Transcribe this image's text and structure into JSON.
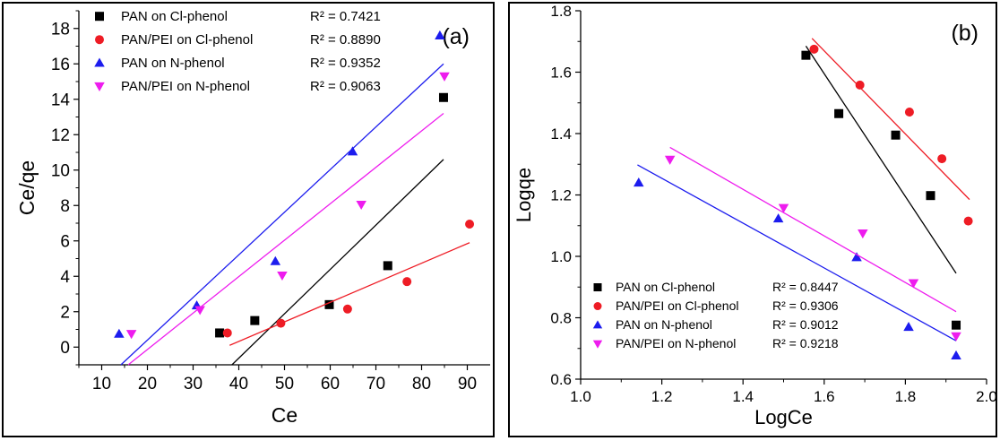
{
  "chart_data": [
    {
      "panel": "(a)",
      "type": "scatter",
      "xlabel": "Ce",
      "ylabel": "Ce/qe",
      "xlim": [
        5,
        95
      ],
      "ylim": [
        -1,
        19
      ],
      "xticks": [
        10,
        20,
        30,
        40,
        50,
        60,
        70,
        80,
        90
      ],
      "yticks": [
        0,
        2,
        4,
        6,
        8,
        10,
        12,
        14,
        16,
        18
      ],
      "grid": false,
      "legend_position": "top-left",
      "series": [
        {
          "name": "PAN on Cl-phenol",
          "r2": "R² = 0.7421",
          "marker": "square",
          "color": "#000000",
          "x": [
            35.8,
            43.5,
            59.8,
            72.6,
            84.8
          ],
          "y": [
            0.8,
            1.5,
            2.4,
            4.6,
            14.1
          ],
          "fit": [
            [
              38.5,
              -1.0
            ],
            [
              84.8,
              10.6
            ]
          ]
        },
        {
          "name": "PAN/PEI on Cl-phenol",
          "r2": "R² = 0.8890",
          "marker": "circle",
          "color": "#ee1c25",
          "x": [
            37.5,
            49.2,
            63.8,
            76.8,
            90.5
          ],
          "y": [
            0.8,
            1.35,
            2.15,
            3.7,
            6.95
          ],
          "fit": [
            [
              38.0,
              0.1
            ],
            [
              90.5,
              5.9
            ]
          ]
        },
        {
          "name": "PAN on N-phenol",
          "r2": "R² = 0.9352",
          "marker": "triangle-up",
          "color": "#1c1cee",
          "x": [
            13.8,
            30.8,
            48.0,
            64.9,
            84.0
          ],
          "y": [
            0.75,
            2.35,
            4.85,
            11.05,
            17.6
          ],
          "fit": [
            [
              14.2,
              -1.0
            ],
            [
              84.8,
              16.0
            ]
          ]
        },
        {
          "name": "PAN/PEI on N-phenol",
          "r2": "R² = 0.9063",
          "marker": "triangle-down",
          "color": "#ee1cee",
          "x": [
            16.5,
            31.5,
            49.5,
            66.8,
            85.0
          ],
          "y": [
            0.75,
            2.1,
            4.05,
            8.05,
            15.3
          ],
          "fit": [
            [
              15.8,
              -1.0
            ],
            [
              84.8,
              13.2
            ]
          ]
        }
      ]
    },
    {
      "panel": "(b)",
      "type": "scatter",
      "xlabel": "LogCe",
      "ylabel": "Logqe",
      "xlim": [
        1.0,
        2.0
      ],
      "ylim": [
        0.6,
        1.8
      ],
      "xticks": [
        1.0,
        1.2,
        1.4,
        1.6,
        1.8,
        2.0
      ],
      "yticks": [
        0.6,
        0.8,
        1.0,
        1.2,
        1.4,
        1.6,
        1.8
      ],
      "grid": false,
      "legend_position": "bottom-left",
      "series": [
        {
          "name": "PAN on Cl-phenol",
          "r2": "R² = 0.8447",
          "marker": "square",
          "color": "#000000",
          "x": [
            1.555,
            1.636,
            1.776,
            1.862,
            1.925
          ],
          "y": [
            1.655,
            1.465,
            1.395,
            1.198,
            0.776
          ],
          "fit": [
            [
              1.555,
              1.685
            ],
            [
              1.925,
              0.945
            ]
          ]
        },
        {
          "name": "PAN/PEI on Cl-phenol",
          "r2": "R² = 0.9306",
          "marker": "circle",
          "color": "#ee1c25",
          "x": [
            1.575,
            1.688,
            1.81,
            1.89,
            1.955
          ],
          "y": [
            1.675,
            1.558,
            1.47,
            1.318,
            1.115
          ],
          "fit": [
            [
              1.57,
              1.71
            ],
            [
              1.958,
              1.185
            ]
          ]
        },
        {
          "name": "PAN on N-phenol",
          "r2": "R² = 0.9012",
          "marker": "triangle-up",
          "color": "#1c1cee",
          "x": [
            1.143,
            1.487,
            1.68,
            1.808,
            1.925
          ],
          "y": [
            1.24,
            1.123,
            0.997,
            0.77,
            0.677
          ],
          "fit": [
            [
              1.14,
              1.298
            ],
            [
              1.925,
              0.725
            ]
          ]
        },
        {
          "name": "PAN/PEI on N-phenol",
          "r2": "R² = 0.9218",
          "marker": "triangle-down",
          "color": "#ee1cee",
          "x": [
            1.22,
            1.5,
            1.695,
            1.82,
            1.925
          ],
          "y": [
            1.315,
            1.158,
            1.075,
            0.913,
            0.74
          ],
          "fit": [
            [
              1.22,
              1.355
            ],
            [
              1.925,
              0.82
            ]
          ]
        }
      ]
    }
  ]
}
